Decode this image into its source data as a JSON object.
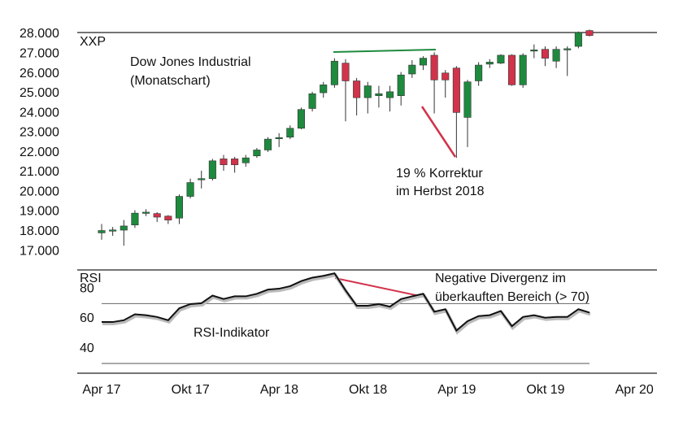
{
  "chart_data": [
    {
      "type": "candlestick",
      "label": "XXP",
      "annotations": [
        "Dow Jones Industrial",
        "(Monatschart)",
        "19 % Korrektur",
        "im Herbst 2018"
      ],
      "up_color": "#1e8a3e",
      "down_color": "#d1334b",
      "open": [
        17850,
        17980,
        17990,
        18250,
        18850,
        18830,
        18700,
        18600,
        19700,
        20550,
        20600,
        21600,
        21600,
        21400,
        21750,
        22050,
        22650,
        22700,
        23150,
        24150,
        24950,
        25350,
        26450,
        25550,
        24700,
        24800,
        24700,
        24800,
        25900,
        26350,
        26850,
        25950,
        26200,
        23700,
        25550,
        26400,
        26450,
        26850,
        25350,
        27100,
        27150,
        26550,
        27150,
        27300,
        28100
      ],
      "high": [
        18300,
        18150,
        18500,
        19000,
        19050,
        18900,
        18750,
        19800,
        20600,
        21000,
        21600,
        21800,
        21700,
        21800,
        22150,
        22700,
        22900,
        23300,
        24200,
        25000,
        25500,
        26700,
        26650,
        25700,
        25500,
        25300,
        25300,
        26000,
        26600,
        26800,
        27000,
        26100,
        26300,
        25600,
        26500,
        26650,
        26900,
        26900,
        26950,
        27400,
        27300,
        27300,
        27300,
        28050,
        28150
      ],
      "low": [
        17500,
        17700,
        17200,
        18100,
        18700,
        18400,
        18300,
        18300,
        19600,
        20100,
        20500,
        21000,
        20900,
        21200,
        21650,
        21950,
        22200,
        22600,
        23100,
        24000,
        24700,
        25200,
        23500,
        23800,
        23900,
        24200,
        24000,
        24300,
        25700,
        26100,
        23900,
        24700,
        21650,
        22200,
        25300,
        26200,
        26400,
        25300,
        25200,
        26700,
        26300,
        26200,
        25800,
        27200,
        27800
      ],
      "close": [
        17970,
        18000,
        18200,
        18850,
        18900,
        18650,
        18500,
        19700,
        20400,
        20600,
        21500,
        21300,
        21300,
        21650,
        22050,
        22600,
        22680,
        23150,
        24100,
        24900,
        25350,
        26550,
        25550,
        24700,
        25300,
        24900,
        25000,
        25850,
        26350,
        26700,
        25600,
        25600,
        23950,
        25500,
        26350,
        26500,
        26850,
        25350,
        26850,
        27120,
        26700,
        27150,
        27180,
        28000,
        27850
      ],
      "ylim": [
        16500,
        28400
      ],
      "yticks": [
        {
          "value": 17000,
          "label": "17.000"
        },
        {
          "value": 18000,
          "label": "18.000"
        },
        {
          "value": 19000,
          "label": "19.000"
        },
        {
          "value": 20000,
          "label": "20.000"
        },
        {
          "value": 21000,
          "label": "21.000"
        },
        {
          "value": 22000,
          "label": "22.000"
        },
        {
          "value": 23000,
          "label": "23.000"
        },
        {
          "value": 24000,
          "label": "24.000"
        },
        {
          "value": 25000,
          "label": "25.000"
        },
        {
          "value": 26000,
          "label": "26.000"
        },
        {
          "value": 27000,
          "label": "27.000"
        },
        {
          "value": 28000,
          "label": "28.000"
        }
      ]
    },
    {
      "type": "line",
      "label": "RSI",
      "annotations": [
        "Negative Divergenz im",
        "überkauften Bereich (> 70)"
      ],
      "series": [
        {
          "name": "RSI-Indikator",
          "color": "#111111",
          "values": [
            57.7,
            57.7,
            58.9,
            62.9,
            62.3,
            61.1,
            58.9,
            66.9,
            69.7,
            70.3,
            75.4,
            73.1,
            74.9,
            74.9,
            76.6,
            79.4,
            80,
            81.7,
            85.1,
            87.4,
            88.6,
            90.3,
            78.9,
            68.6,
            68.6,
            69.7,
            68,
            73.1,
            74.9,
            76.6,
            64.6,
            66.3,
            52,
            58.3,
            61.7,
            62.3,
            65.1,
            54.9,
            61.1,
            62.3,
            60.6,
            61.1,
            61.1,
            66.3,
            64
          ]
        }
      ],
      "reference_lines": [
        30,
        70
      ],
      "ylim": [
        24,
        92
      ],
      "yticks": [
        40,
        60,
        80
      ],
      "x_labels": [
        "Apr 17",
        "Okt 17",
        "Apr 18",
        "Okt 18",
        "Apr 19",
        "Okt 19",
        "Apr 20"
      ]
    }
  ]
}
